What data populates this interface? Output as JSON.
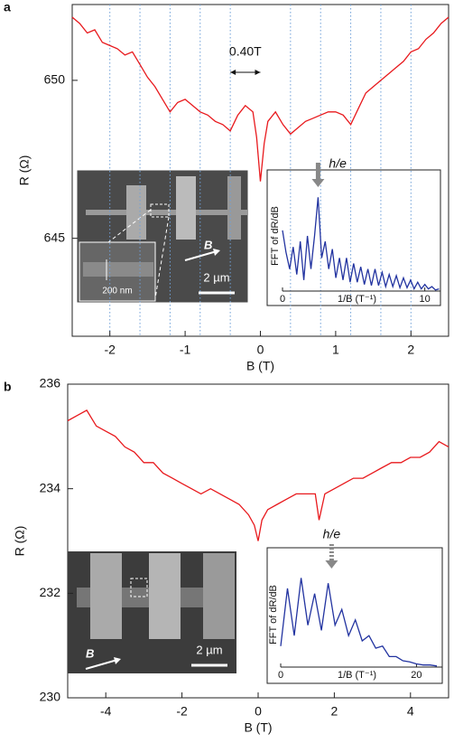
{
  "chart_data": [
    {
      "type": "line",
      "panel": "a",
      "x_label": "B (T)",
      "y_label": "R (Ω)",
      "x": [
        -2.5,
        -2.4,
        -2.3,
        -2.2,
        -2.1,
        -2.0,
        -1.9,
        -1.8,
        -1.7,
        -1.6,
        -1.5,
        -1.4,
        -1.3,
        -1.2,
        -1.1,
        -1.0,
        -0.9,
        -0.8,
        -0.7,
        -0.6,
        -0.5,
        -0.4,
        -0.3,
        -0.2,
        -0.1,
        -0.05,
        0,
        0.05,
        0.1,
        0.2,
        0.3,
        0.4,
        0.5,
        0.6,
        0.7,
        0.8,
        0.9,
        1.0,
        1.1,
        1.2,
        1.3,
        1.4,
        1.5,
        1.6,
        1.7,
        1.8,
        1.9,
        2.0,
        2.1,
        2.2,
        2.3,
        2.4,
        2.5
      ],
      "series": [
        {
          "color": "#e8191d",
          "values": [
            652.0,
            651.8,
            651.5,
            651.6,
            651.2,
            651.1,
            651.0,
            650.8,
            650.9,
            650.5,
            650.1,
            649.8,
            649.4,
            649.0,
            649.3,
            649.4,
            649.2,
            649.0,
            648.9,
            648.7,
            648.6,
            648.4,
            648.9,
            649.2,
            649.0,
            648.2,
            646.8,
            648.0,
            648.7,
            649.0,
            648.6,
            648.3,
            648.5,
            648.7,
            648.8,
            648.9,
            649.0,
            649.0,
            648.9,
            648.6,
            649.1,
            649.6,
            649.8,
            650.0,
            650.2,
            650.4,
            650.6,
            650.9,
            651.0,
            651.3,
            651.5,
            651.8,
            652.0
          ]
        }
      ],
      "xlim": [
        -2.5,
        2.5
      ],
      "ylim": [
        641.9,
        652.4
      ],
      "xticks": [
        -2,
        -1,
        0,
        1,
        2
      ],
      "yticks": [
        645,
        650
      ],
      "guide_x": [
        -2.0,
        -1.6,
        -1.2,
        -0.8,
        -0.4,
        0.4,
        0.8,
        1.2,
        1.6,
        2.0
      ],
      "guide_color": "#6fa0d8",
      "period": {
        "label": "0.40T",
        "from": -0.4,
        "to": 0
      },
      "scale_bar": "2 µm",
      "inset_scale": "200 nm",
      "field_label": "B"
    },
    {
      "type": "line",
      "x_label": "1/B (T⁻¹)",
      "y_label": "FFT of dR/dB",
      "x": [
        0,
        0.25,
        0.5,
        0.75,
        1,
        1.25,
        1.5,
        1.75,
        2,
        2.25,
        2.5,
        2.75,
        3,
        3.25,
        3.5,
        3.75,
        4,
        4.25,
        4.5,
        4.75,
        5,
        5.25,
        5.5,
        5.75,
        6,
        6.25,
        6.5,
        6.75,
        7,
        7.25,
        7.5,
        7.75,
        8,
        8.25,
        8.5,
        8.75,
        9,
        9.25,
        9.5,
        9.75,
        10,
        10.25,
        10.5,
        10.75,
        11
      ],
      "series": [
        {
          "color": "#2233a0",
          "values": [
            0.55,
            0.35,
            0.2,
            0.4,
            0.15,
            0.45,
            0.1,
            0.5,
            0.2,
            0.5,
            0.85,
            0.3,
            0.45,
            0.2,
            0.38,
            0.12,
            0.3,
            0.1,
            0.3,
            0.08,
            0.25,
            0.08,
            0.22,
            0.06,
            0.2,
            0.05,
            0.2,
            0.05,
            0.17,
            0.04,
            0.15,
            0.04,
            0.14,
            0.03,
            0.12,
            0.03,
            0.1,
            0.02,
            0.08,
            0.02,
            0.06,
            0.02,
            0.04,
            0.01,
            0.02
          ]
        }
      ],
      "xlim": [
        0,
        11.1
      ],
      "ylim": [
        0,
        1
      ],
      "xticks": [
        0,
        10
      ],
      "marker": {
        "label": "h/e",
        "x": 2.5,
        "style": "solid"
      }
    },
    {
      "type": "line",
      "panel": "b",
      "x_label": "B (T)",
      "y_label": "R (Ω)",
      "x": [
        -5,
        -4.75,
        -4.5,
        -4.25,
        -4,
        -3.75,
        -3.5,
        -3.25,
        -3,
        -2.75,
        -2.5,
        -2.25,
        -2,
        -1.75,
        -1.5,
        -1.25,
        -1,
        -0.75,
        -0.5,
        -0.25,
        -0.1,
        0,
        0.1,
        0.25,
        0.5,
        0.75,
        1,
        1.25,
        1.5,
        1.6,
        1.75,
        2,
        2.25,
        2.5,
        2.75,
        3,
        3.25,
        3.5,
        3.75,
        4,
        4.25,
        4.5,
        4.75,
        5
      ],
      "series": [
        {
          "color": "#e8191d",
          "values": [
            235.3,
            235.4,
            235.5,
            235.2,
            235.1,
            235.0,
            234.8,
            234.7,
            234.5,
            234.5,
            234.3,
            234.2,
            234.1,
            234.0,
            233.9,
            234.0,
            233.9,
            233.8,
            233.7,
            233.5,
            233.3,
            233.0,
            233.4,
            233.6,
            233.7,
            233.8,
            233.9,
            233.9,
            233.9,
            233.4,
            233.9,
            234.0,
            234.1,
            234.2,
            234.2,
            234.3,
            234.4,
            234.5,
            234.5,
            234.6,
            234.6,
            234.7,
            234.9,
            234.8
          ]
        }
      ],
      "xlim": [
        -5,
        5
      ],
      "ylim": [
        230,
        236
      ],
      "xticks": [
        -4,
        -2,
        0,
        2,
        4
      ],
      "yticks": [
        230,
        232,
        234,
        236
      ],
      "scale_bar": "2 µm",
      "field_label": "B"
    },
    {
      "type": "line",
      "x_label": "1/B (T⁻¹)",
      "y_label": "FFT of dR/dB",
      "x": [
        0,
        1,
        2,
        3,
        4,
        5,
        6,
        7,
        8,
        9,
        10,
        11,
        12,
        13,
        14,
        15,
        16,
        17,
        18,
        19,
        20,
        21,
        22,
        23
      ],
      "series": [
        {
          "color": "#2233a0",
          "values": [
            0.2,
            0.75,
            0.3,
            0.85,
            0.4,
            0.7,
            0.35,
            0.8,
            0.4,
            0.55,
            0.3,
            0.45,
            0.25,
            0.3,
            0.18,
            0.2,
            0.1,
            0.1,
            0.06,
            0.05,
            0.03,
            0.02,
            0.02,
            0.01
          ]
        }
      ],
      "xlim": [
        0,
        23.8
      ],
      "ylim": [
        0,
        1
      ],
      "xticks": [
        0,
        20
      ],
      "marker": {
        "label": "h/e",
        "x": 7.5,
        "style": "dashed"
      }
    }
  ]
}
